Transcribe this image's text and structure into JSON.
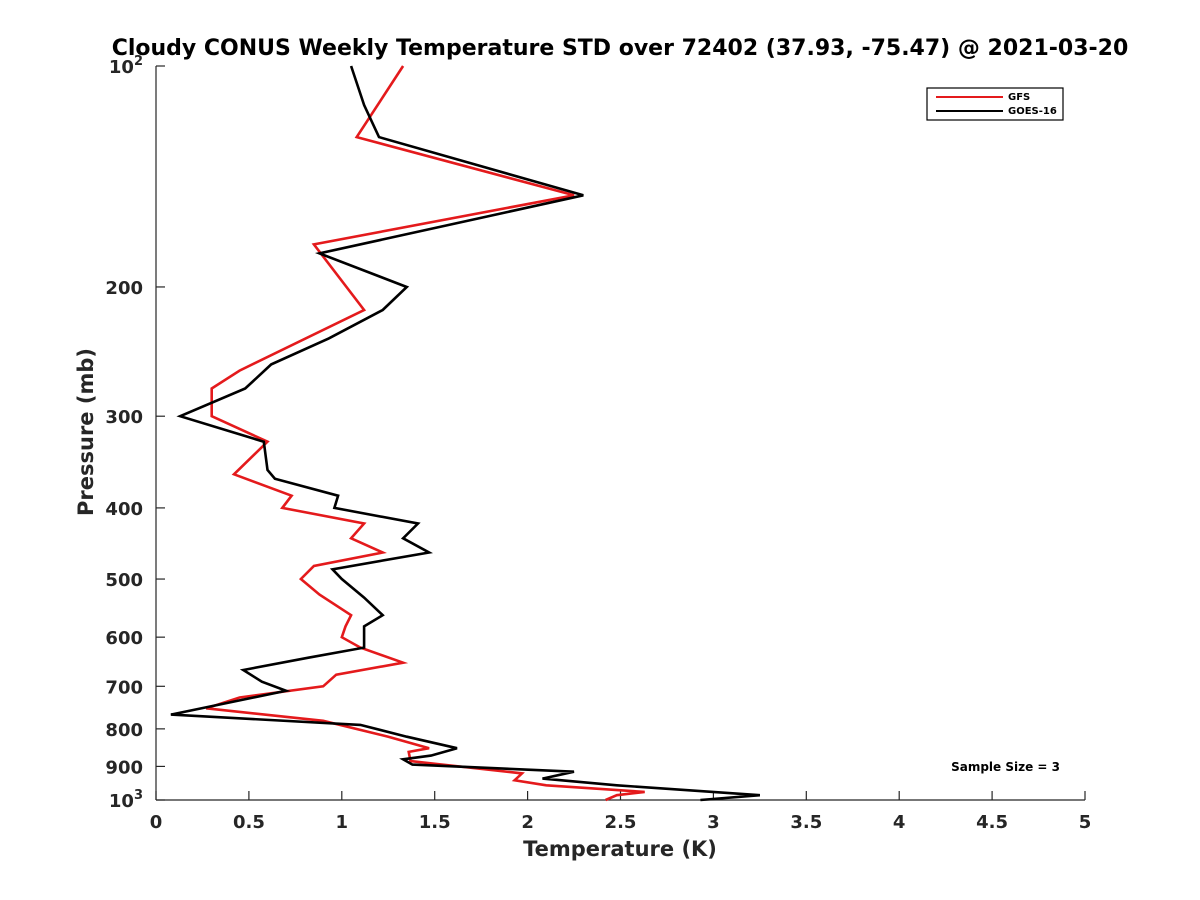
{
  "chart_data": {
    "type": "line",
    "title": "Cloudy CONUS Weekly Temperature STD over 72402 (37.93, -75.47) @ 2021-03-20",
    "xlabel": "Temperature (K)",
    "ylabel": "Pressure (mb)",
    "xlim": [
      0,
      5
    ],
    "ylim": [
      100,
      1000
    ],
    "y_scale": "log",
    "y_reversed": true,
    "grid": false,
    "legend_position": "top-right",
    "x_ticks": [
      {
        "value": 0,
        "label": "0"
      },
      {
        "value": 0.5,
        "label": "0.5"
      },
      {
        "value": 1,
        "label": "1"
      },
      {
        "value": 1.5,
        "label": "1.5"
      },
      {
        "value": 2,
        "label": "2"
      },
      {
        "value": 2.5,
        "label": "2.5"
      },
      {
        "value": 3,
        "label": "3"
      },
      {
        "value": 3.5,
        "label": "3.5"
      },
      {
        "value": 4,
        "label": "4"
      },
      {
        "value": 4.5,
        "label": "4.5"
      },
      {
        "value": 5,
        "label": "5"
      }
    ],
    "y_ticks": [
      {
        "value": 100,
        "label": "10",
        "sup": "2"
      },
      {
        "value": 200,
        "label": "200"
      },
      {
        "value": 300,
        "label": "300"
      },
      {
        "value": 400,
        "label": "400"
      },
      {
        "value": 500,
        "label": "500"
      },
      {
        "value": 600,
        "label": "600"
      },
      {
        "value": 700,
        "label": "700"
      },
      {
        "value": 800,
        "label": "800"
      },
      {
        "value": 900,
        "label": "900"
      },
      {
        "value": 1000,
        "label": "10",
        "sup": "3"
      }
    ],
    "series": [
      {
        "name": "GFS",
        "color": "#e41a1c",
        "points": [
          {
            "t": 1.33,
            "p": 100
          },
          {
            "t": 1.08,
            "p": 125
          },
          {
            "t": 2.25,
            "p": 150
          },
          {
            "t": 0.85,
            "p": 175
          },
          {
            "t": 1.12,
            "p": 215
          },
          {
            "t": 0.45,
            "p": 260
          },
          {
            "t": 0.3,
            "p": 275
          },
          {
            "t": 0.3,
            "p": 300
          },
          {
            "t": 0.6,
            "p": 325
          },
          {
            "t": 0.42,
            "p": 360
          },
          {
            "t": 0.73,
            "p": 385
          },
          {
            "t": 0.68,
            "p": 400
          },
          {
            "t": 1.12,
            "p": 420
          },
          {
            "t": 1.05,
            "p": 440
          },
          {
            "t": 1.22,
            "p": 460
          },
          {
            "t": 0.85,
            "p": 480
          },
          {
            "t": 0.78,
            "p": 500
          },
          {
            "t": 0.88,
            "p": 525
          },
          {
            "t": 1.05,
            "p": 560
          },
          {
            "t": 1.02,
            "p": 580
          },
          {
            "t": 1.0,
            "p": 600
          },
          {
            "t": 1.1,
            "p": 620
          },
          {
            "t": 1.33,
            "p": 650
          },
          {
            "t": 0.97,
            "p": 675
          },
          {
            "t": 0.9,
            "p": 700
          },
          {
            "t": 0.45,
            "p": 725
          },
          {
            "t": 0.27,
            "p": 750
          },
          {
            "t": 0.9,
            "p": 780
          },
          {
            "t": 1.25,
            "p": 820
          },
          {
            "t": 1.47,
            "p": 850
          },
          {
            "t": 1.36,
            "p": 860
          },
          {
            "t": 1.37,
            "p": 885
          },
          {
            "t": 1.97,
            "p": 920
          },
          {
            "t": 1.93,
            "p": 940
          },
          {
            "t": 2.1,
            "p": 955
          },
          {
            "t": 2.63,
            "p": 975
          },
          {
            "t": 2.48,
            "p": 985
          },
          {
            "t": 2.42,
            "p": 1000
          }
        ]
      },
      {
        "name": "GOES-16",
        "color": "#000000",
        "points": [
          {
            "t": 1.05,
            "p": 100
          },
          {
            "t": 1.12,
            "p": 113
          },
          {
            "t": 1.2,
            "p": 125
          },
          {
            "t": 2.3,
            "p": 150
          },
          {
            "t": 0.88,
            "p": 180
          },
          {
            "t": 1.35,
            "p": 200
          },
          {
            "t": 1.22,
            "p": 215
          },
          {
            "t": 0.93,
            "p": 235
          },
          {
            "t": 0.62,
            "p": 255
          },
          {
            "t": 0.48,
            "p": 275
          },
          {
            "t": 0.13,
            "p": 300
          },
          {
            "t": 0.58,
            "p": 325
          },
          {
            "t": 0.6,
            "p": 355
          },
          {
            "t": 0.64,
            "p": 365
          },
          {
            "t": 0.98,
            "p": 385
          },
          {
            "t": 0.96,
            "p": 400
          },
          {
            "t": 1.41,
            "p": 420
          },
          {
            "t": 1.33,
            "p": 440
          },
          {
            "t": 1.47,
            "p": 460
          },
          {
            "t": 0.95,
            "p": 485
          },
          {
            "t": 1.0,
            "p": 500
          },
          {
            "t": 1.12,
            "p": 530
          },
          {
            "t": 1.22,
            "p": 560
          },
          {
            "t": 1.12,
            "p": 580
          },
          {
            "t": 1.12,
            "p": 620
          },
          {
            "t": 0.82,
            "p": 640
          },
          {
            "t": 0.47,
            "p": 665
          },
          {
            "t": 0.57,
            "p": 690
          },
          {
            "t": 0.7,
            "p": 710
          },
          {
            "t": 0.08,
            "p": 765
          },
          {
            "t": 1.1,
            "p": 790
          },
          {
            "t": 1.35,
            "p": 820
          },
          {
            "t": 1.62,
            "p": 850
          },
          {
            "t": 1.48,
            "p": 870
          },
          {
            "t": 1.33,
            "p": 880
          },
          {
            "t": 1.38,
            "p": 895
          },
          {
            "t": 2.25,
            "p": 915
          },
          {
            "t": 2.08,
            "p": 935
          },
          {
            "t": 2.48,
            "p": 955
          },
          {
            "t": 3.25,
            "p": 985
          },
          {
            "t": 2.93,
            "p": 1000
          }
        ]
      }
    ],
    "annotation": "Sample Size = 3"
  }
}
